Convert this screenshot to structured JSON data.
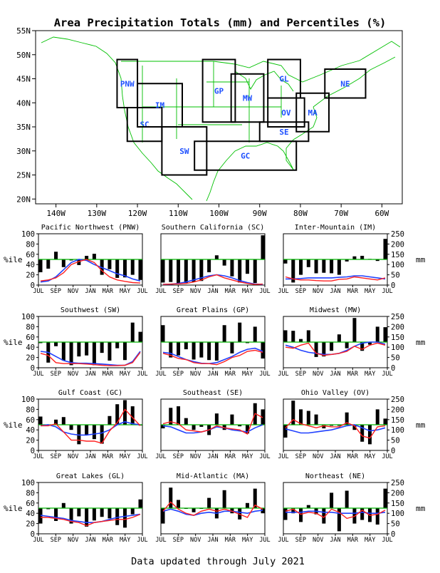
{
  "title": "Area Precipitation Totals (mm) and Percentiles (%)",
  "footer": "Data updated through July 2021",
  "colors": {
    "bar": "#000000",
    "obs": "#ff2020",
    "normal": "#2040ff",
    "ref": "#00b400",
    "coast": "#00c000",
    "box": "#000000",
    "region_label": "#1e50ff"
  },
  "map": {
    "lat_labels": [
      "55N",
      "50N",
      "45N",
      "40N",
      "35N",
      "30N",
      "25N",
      "20N"
    ],
    "lon_labels": [
      "140W",
      "130W",
      "120W",
      "110W",
      "100W",
      "90W",
      "80W",
      "70W",
      "60W"
    ],
    "regions": [
      {
        "code": "PNW",
        "lon": [
          -125,
          -120
        ],
        "lat": [
          39,
          49
        ]
      },
      {
        "code": "SC",
        "lon": [
          -122.5,
          -114
        ],
        "lat": [
          32,
          39
        ]
      },
      {
        "code": "IM",
        "lon": [
          -120,
          -109
        ],
        "lat": [
          35,
          44
        ]
      },
      {
        "code": "SW",
        "lon": [
          -114,
          -103
        ],
        "lat": [
          25,
          35
        ]
      },
      {
        "code": "GP",
        "lon": [
          -104,
          -96
        ],
        "lat": [
          36,
          49
        ]
      },
      {
        "code": "MW",
        "lon": [
          -97,
          -89
        ],
        "lat": [
          36,
          46
        ]
      },
      {
        "code": "GL",
        "lon": [
          -88,
          -80
        ],
        "lat": [
          41,
          49
        ]
      },
      {
        "code": "OV",
        "lon": [
          -88,
          -79
        ],
        "lat": [
          35,
          41
        ]
      },
      {
        "code": "MA",
        "lon": [
          -81,
          -73
        ],
        "lat": [
          34,
          42
        ]
      },
      {
        "code": "NE",
        "lon": [
          -74,
          -64
        ],
        "lat": [
          41,
          47
        ]
      },
      {
        "code": "SE",
        "lon": [
          -90,
          -78
        ],
        "lat": [
          32,
          36
        ]
      },
      {
        "code": "GC",
        "lon": [
          -106,
          -81
        ],
        "lat": [
          26,
          32
        ]
      }
    ]
  },
  "chart_axes": {
    "months": [
      "JUL",
      "SEP",
      "NOV",
      "JAN",
      "MAR",
      "MAY",
      "JUL"
    ],
    "pct_label": "%ile",
    "mm_label": "mm",
    "pct_ticks": [
      "0",
      "20",
      "40",
      "60",
      "80",
      "100"
    ],
    "mm_ticks": [
      "0",
      "50",
      "100",
      "150",
      "200",
      "250"
    ]
  },
  "chart_data": [
    {
      "type": "bar",
      "title": "Pacific Northwest (PNW)",
      "percentiles": [
        25,
        32,
        65,
        35,
        48,
        39,
        57,
        61,
        20,
        31,
        14,
        15,
        20,
        10
      ],
      "precip_mm": [
        20,
        25,
        35,
        60,
        100,
        115,
        125,
        110,
        70,
        40,
        25,
        18,
        12,
        10
      ],
      "normal_mm": [
        15,
        20,
        40,
        75,
        110,
        125,
        120,
        100,
        85,
        70,
        55,
        45,
        30,
        20
      ],
      "ylim_pct": [
        0,
        100
      ],
      "ylim_mm": [
        0,
        250
      ]
    },
    {
      "type": "bar",
      "title": "Southern California (SC)",
      "percentiles": [
        5,
        6,
        3,
        4,
        6,
        8,
        25,
        58,
        38,
        17,
        5,
        22,
        4,
        97
      ],
      "precip_mm": [
        3,
        5,
        6,
        8,
        15,
        25,
        40,
        50,
        35,
        25,
        15,
        8,
        3,
        5
      ],
      "normal_mm": [
        3,
        4,
        8,
        15,
        25,
        35,
        45,
        50,
        45,
        35,
        22,
        12,
        5,
        3
      ],
      "ylim_pct": [
        0,
        100
      ],
      "ylim_mm": [
        0,
        250
      ]
    },
    {
      "type": "bar",
      "title": "Inter-Mountain (IM)",
      "percentiles": [
        42,
        5,
        20,
        35,
        23,
        24,
        23,
        20,
        46,
        56,
        57,
        51,
        47,
        90
      ],
      "precip_mm": [
        40,
        30,
        25,
        25,
        22,
        20,
        20,
        28,
        30,
        40,
        35,
        30,
        25,
        35
      ],
      "normal_mm": [
        30,
        30,
        32,
        35,
        35,
        35,
        35,
        38,
        40,
        45,
        45,
        40,
        35,
        30
      ],
      "ylim_pct": [
        0,
        100
      ],
      "ylim_mm": [
        0,
        250
      ]
    },
    {
      "type": "bar",
      "title": "Southwest (SW)",
      "percentiles": [
        48,
        10,
        42,
        14,
        5,
        22,
        24,
        5,
        29,
        14,
        38,
        15,
        88,
        70
      ],
      "precip_mm": [
        70,
        60,
        25,
        20,
        20,
        20,
        18,
        15,
        12,
        10,
        10,
        12,
        25,
        75
      ],
      "normal_mm": [
        80,
        75,
        55,
        35,
        25,
        22,
        22,
        20,
        18,
        15,
        12,
        12,
        30,
        80
      ],
      "ylim_pct": [
        0,
        100
      ],
      "ylim_mm": [
        0,
        250
      ]
    },
    {
      "type": "bar",
      "title": "Great Plains (GP)",
      "percentiles": [
        83,
        20,
        24,
        36,
        16,
        20,
        15,
        14,
        83,
        28,
        88,
        48,
        80,
        18
      ],
      "precip_mm": [
        70,
        60,
        45,
        40,
        25,
        20,
        20,
        15,
        30,
        50,
        60,
        80,
        85,
        75
      ],
      "normal_mm": [
        75,
        70,
        55,
        40,
        30,
        22,
        20,
        25,
        40,
        55,
        75,
        90,
        95,
        80
      ],
      "ylim_pct": [
        0,
        100
      ],
      "ylim_mm": [
        0,
        250
      ]
    },
    {
      "type": "bar",
      "title": "Midwest (MW)",
      "percentiles": [
        73,
        72,
        56,
        73,
        21,
        22,
        33,
        65,
        38,
        97,
        33,
        45,
        80,
        79
      ],
      "precip_mm": [
        100,
        95,
        110,
        120,
        70,
        60,
        65,
        70,
        80,
        105,
        90,
        110,
        120,
        110
      ],
      "normal_mm": [
        110,
        100,
        85,
        75,
        70,
        65,
        65,
        70,
        85,
        105,
        120,
        125,
        125,
        115
      ],
      "ylim_pct": [
        0,
        100
      ],
      "ylim_mm": [
        0,
        250
      ]
    },
    {
      "type": "bar",
      "title": "Gulf Coast (GC)",
      "percentiles": [
        66,
        50,
        60,
        65,
        40,
        12,
        30,
        22,
        13,
        67,
        90,
        98,
        86,
        50
      ],
      "precip_mm": [
        120,
        120,
        130,
        90,
        50,
        50,
        45,
        45,
        35,
        95,
        135,
        200,
        160,
        120
      ],
      "normal_mm": [
        120,
        125,
        115,
        90,
        80,
        75,
        75,
        80,
        85,
        100,
        125,
        140,
        130,
        125
      ],
      "ylim_pct": [
        0,
        100
      ],
      "ylim_mm": [
        0,
        250
      ]
    },
    {
      "type": "bar",
      "title": "Southeast (SE)",
      "percentiles": [
        43,
        83,
        86,
        63,
        40,
        46,
        30,
        72,
        40,
        70,
        47,
        33,
        92,
        80
      ],
      "precip_mm": [
        130,
        140,
        130,
        100,
        95,
        90,
        100,
        120,
        110,
        105,
        100,
        80,
        180,
        160
      ],
      "normal_mm": [
        120,
        115,
        100,
        85,
        85,
        90,
        100,
        115,
        110,
        100,
        95,
        90,
        110,
        125
      ],
      "ylim_pct": [
        0,
        100
      ],
      "ylim_mm": [
        0,
        250
      ]
    },
    {
      "type": "bar",
      "title": "Ohio Valley (OV)",
      "percentiles": [
        25,
        97,
        80,
        77,
        70,
        43,
        48,
        48,
        74,
        40,
        17,
        12,
        80,
        62
      ],
      "precip_mm": [
        110,
        150,
        130,
        120,
        110,
        120,
        115,
        115,
        135,
        120,
        70,
        60,
        115,
        120
      ],
      "normal_mm": [
        105,
        95,
        85,
        85,
        90,
        95,
        100,
        110,
        120,
        125,
        110,
        95,
        100,
        110
      ],
      "ylim_pct": [
        0,
        100
      ],
      "ylim_mm": [
        0,
        250
      ]
    },
    {
      "type": "bar",
      "title": "Great Lakes (GL)",
      "percentiles": [
        20,
        48,
        25,
        60,
        20,
        34,
        14,
        26,
        33,
        30,
        17,
        12,
        38,
        67
      ],
      "precip_mm": [
        80,
        80,
        75,
        70,
        60,
        55,
        40,
        55,
        60,
        65,
        70,
        70,
        80,
        95
      ],
      "normal_mm": [
        90,
        85,
        80,
        75,
        65,
        60,
        55,
        55,
        60,
        70,
        80,
        85,
        90,
        95
      ],
      "ylim_pct": [
        0,
        100
      ],
      "ylim_mm": [
        0,
        250
      ]
    },
    {
      "type": "bar",
      "title": "Mid-Atlantic (MA)",
      "percentiles": [
        20,
        90,
        66,
        50,
        42,
        50,
        70,
        30,
        85,
        40,
        28,
        60,
        88,
        40
      ],
      "precip_mm": [
        110,
        155,
        120,
        100,
        90,
        110,
        120,
        110,
        120,
        110,
        95,
        80,
        140,
        120
      ],
      "normal_mm": [
        110,
        120,
        110,
        95,
        90,
        100,
        105,
        100,
        110,
        110,
        105,
        100,
        110,
        115
      ],
      "ylim_pct": [
        0,
        100
      ],
      "ylim_mm": [
        0,
        250
      ]
    },
    {
      "type": "bar",
      "title": "Northeast (NE)",
      "percentiles": [
        27,
        40,
        23,
        56,
        38,
        20,
        80,
        5,
        84,
        20,
        27,
        23,
        18,
        88
      ],
      "precip_mm": [
        110,
        120,
        95,
        105,
        100,
        80,
        120,
        105,
        75,
        85,
        115,
        90,
        95,
        115
      ],
      "normal_mm": [
        105,
        105,
        105,
        110,
        110,
        105,
        105,
        100,
        100,
        100,
        105,
        100,
        100,
        105
      ],
      "ylim_pct": [
        0,
        100
      ],
      "ylim_mm": [
        0,
        250
      ]
    }
  ]
}
